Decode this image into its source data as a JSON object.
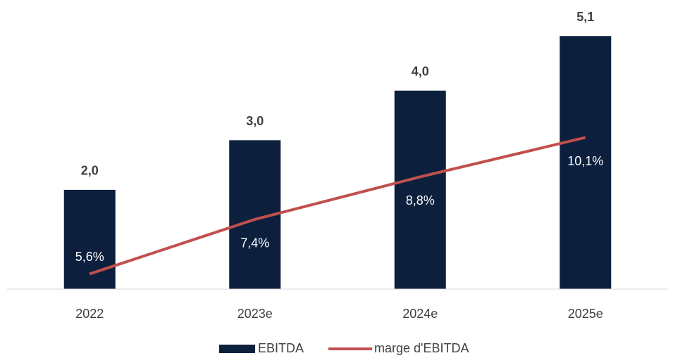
{
  "chart_data": {
    "type": "bar_line",
    "categories": [
      "2022",
      "2023e",
      "2024e",
      "2025e"
    ],
    "series": [
      {
        "name": "EBITDA",
        "type": "bar",
        "color": "#0c1f3d",
        "values": [
          2.0,
          3.0,
          4.0,
          5.1
        ],
        "value_labels": [
          "2,0",
          "3,0",
          "4,0",
          "5,1"
        ]
      },
      {
        "name": "marge d'EBITDA",
        "type": "line",
        "axis": "y2",
        "color": "#c0504d",
        "values": [
          5.6,
          7.4,
          8.8,
          10.1
        ],
        "value_labels": [
          "5,6%",
          "7,4%",
          "8,8%",
          "10,1%"
        ]
      }
    ],
    "ylim": [
      0,
      5.5
    ],
    "y2lim": [
      5.1,
      14.1
    ],
    "legend": "bottom"
  }
}
